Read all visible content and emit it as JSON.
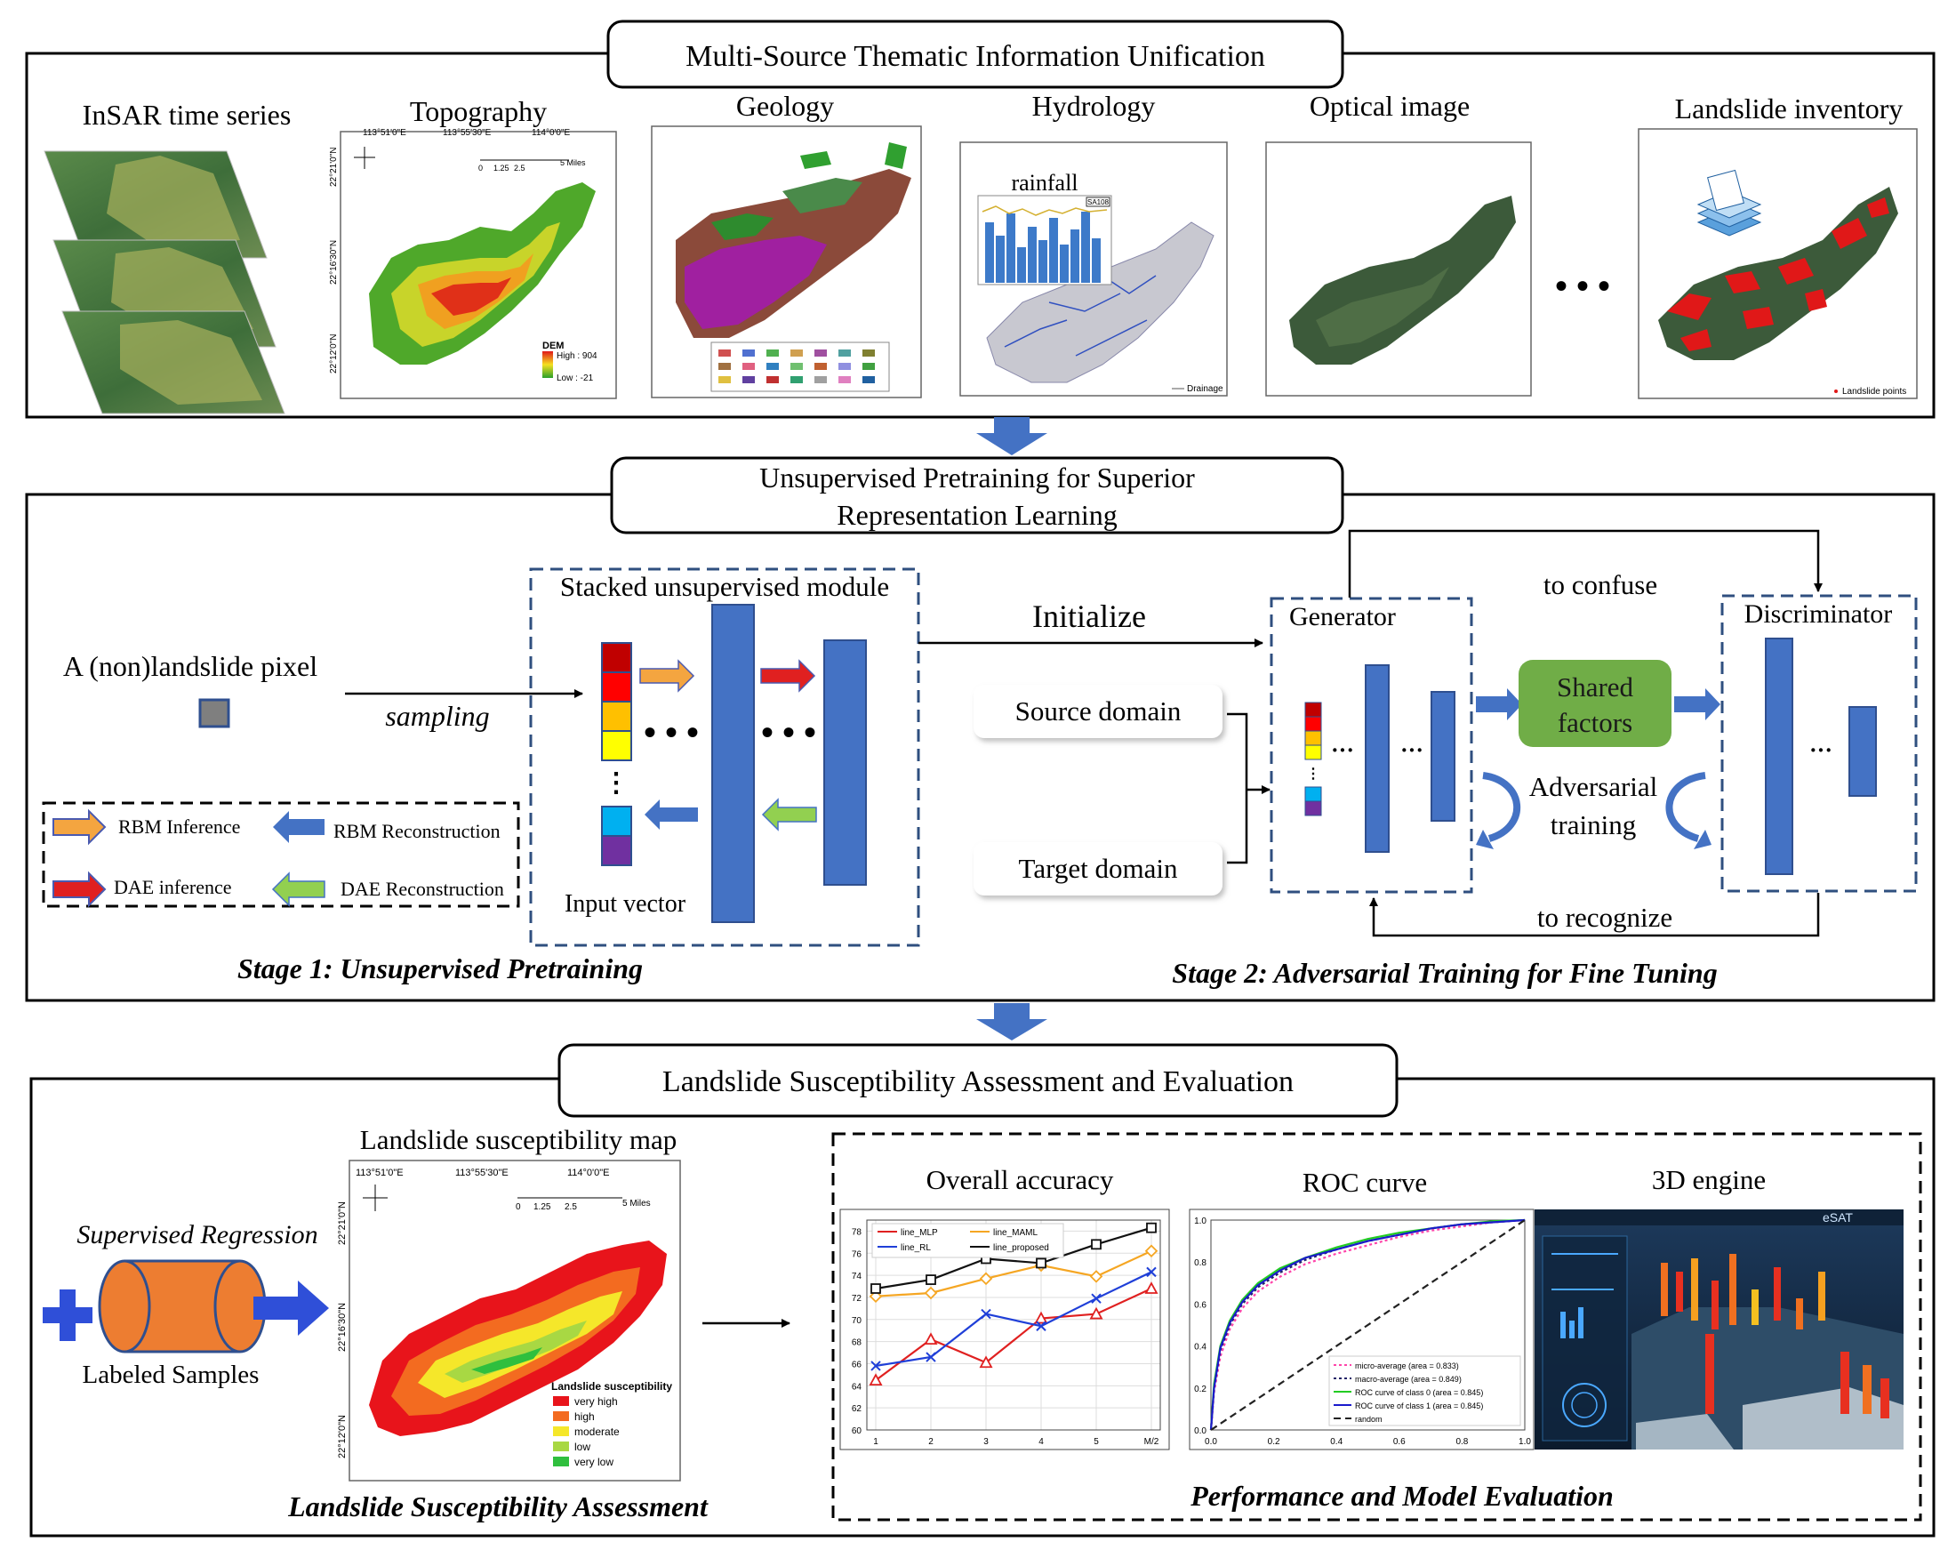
{
  "colors": {
    "accent_blue": "#4472c4",
    "shared_green": "#70ad47",
    "cylinder_orange": "#ed7d31",
    "arrow_orange": "#f4b183",
    "arrow_red": "#e03030",
    "arrow_green": "#92d050",
    "arrow_blue": "#4472c4"
  },
  "section1": {
    "title": "Multi-Source Thematic Information Unification",
    "insar_label": "InSAR time series",
    "topography": {
      "label": "Topography",
      "lon_ticks": [
        "113°51'0\"E",
        "113°55'30\"E",
        "114°0'0\"E"
      ],
      "lat_ticks": [
        "22°21'0\"N",
        "22°16'30\"N",
        "22°12'0\"N"
      ],
      "scale": [
        "0",
        "1.25",
        "2.5",
        "5 Miles"
      ],
      "legend_title": "DEM",
      "legend_high": "High : 904",
      "legend_low": "Low : -21"
    },
    "geology": {
      "label": "Geology"
    },
    "hydrology": {
      "label": "Hydrology",
      "rainfall_label": "rainfall",
      "drainage_label": "Drainage",
      "station": "SA108"
    },
    "optical": {
      "label": "Optical image"
    },
    "ellipsis": "• • •",
    "inventory": {
      "label": "Landslide inventory",
      "points_label": "Landslide points"
    }
  },
  "section2": {
    "title_line1": "Unsupervised Pretraining for Superior",
    "title_line2": "Representation Learning",
    "pixel_label": "A (non)landslide pixel",
    "sampling_label": "sampling",
    "legend": {
      "rbm_inference": "RBM Inference",
      "rbm_reconstruction": "RBM Reconstruction",
      "dae_inference": "DAE inference",
      "dae_reconstruction": "DAE Reconstruction"
    },
    "stacked_module": "Stacked unsupervised module",
    "input_vector": "Input vector",
    "stage1": "Stage 1: Unsupervised Pretraining",
    "initialize": "Initialize",
    "source_domain": "Source domain",
    "target_domain": "Target domain",
    "generator": "Generator",
    "discriminator": "Discriminator",
    "to_confuse": "to confuse",
    "shared_factors_line1": "Shared",
    "shared_factors_line2": "factors",
    "adversarial_line1": "Adversarial",
    "adversarial_line2": "training",
    "to_recognize": "to recognize",
    "stage2": "Stage 2: Adversarial Training for Fine Tuning"
  },
  "section3": {
    "title": "Landslide Susceptibility Assessment and Evaluation",
    "supervised_regression": "Supervised Regression",
    "labeled_samples": "Labeled Samples",
    "map_title": "Landslide susceptibility map",
    "map_lon_ticks": [
      "113°51'0\"E",
      "113°55'30\"E",
      "114°0'0\"E"
    ],
    "map_lat_ticks": [
      "22°21'0\"N",
      "22°16'30\"N",
      "22°12'0\"N"
    ],
    "map_scale": [
      "0",
      "1.25",
      "2.5",
      "5 Miles"
    ],
    "map_legend_title": "Landslide susceptibility",
    "map_legend": [
      {
        "label": "very high",
        "color": "#e8141b"
      },
      {
        "label": "high",
        "color": "#f36b20"
      },
      {
        "label": "moderate",
        "color": "#f5e72a"
      },
      {
        "label": "low",
        "color": "#a8d843"
      },
      {
        "label": "very low",
        "color": "#2fbf3e"
      }
    ],
    "assessment_label": "Landslide Susceptibility Assessment",
    "accuracy_title": "Overall accuracy",
    "roc_title": "ROC curve",
    "engine_title": "3D engine",
    "engine_brand": "eSAT",
    "evaluation_label": "Performance and Model Evaluation"
  },
  "chart_data": [
    {
      "type": "line",
      "title": "Overall accuracy",
      "categories": [
        "1",
        "2",
        "3",
        "4",
        "5",
        "M/2"
      ],
      "ylim": [
        60,
        79
      ],
      "yticks": [
        60,
        62,
        64,
        66,
        68,
        70,
        72,
        74,
        76,
        78
      ],
      "legend_position": "top-left",
      "grid": true,
      "series": [
        {
          "name": "line_MLP",
          "color": "#e02020",
          "marker": "triangle",
          "values": [
            64.5,
            68.2,
            66.1,
            70.1,
            70.5,
            72.8
          ]
        },
        {
          "name": "line_MAML",
          "color": "#f5a623",
          "marker": "diamond",
          "values": [
            72.1,
            72.4,
            73.7,
            74.9,
            73.9,
            76.2
          ]
        },
        {
          "name": "line_RL",
          "color": "#1f3fd8",
          "marker": "x",
          "values": [
            65.8,
            66.6,
            70.5,
            69.4,
            71.9,
            74.3
          ]
        },
        {
          "name": "line_proposed",
          "color": "#111111",
          "marker": "square",
          "values": [
            72.8,
            73.6,
            75.5,
            75.1,
            76.8,
            78.3
          ]
        }
      ]
    },
    {
      "type": "line",
      "title": "ROC curve",
      "xlim": [
        0,
        1
      ],
      "ylim": [
        0,
        1
      ],
      "xticks": [
        "0.0",
        "0.2",
        "0.4",
        "0.6",
        "0.8",
        "1.0"
      ],
      "yticks": [
        "0.0",
        "0.2",
        "0.4",
        "0.6",
        "0.8",
        "1.0"
      ],
      "legend_position": "bottom-right",
      "series": [
        {
          "name": "micro-average (area = 0.833)",
          "color": "#ff44aa",
          "dash": "dot",
          "x": [
            0,
            0.01,
            0.03,
            0.06,
            0.1,
            0.15,
            0.22,
            0.3,
            0.4,
            0.5,
            0.6,
            0.7,
            0.8,
            0.9,
            1.0
          ],
          "y": [
            0,
            0.18,
            0.35,
            0.48,
            0.58,
            0.66,
            0.73,
            0.79,
            0.84,
            0.88,
            0.92,
            0.95,
            0.97,
            0.99,
            1.0
          ]
        },
        {
          "name": "macro-average (area = 0.849)",
          "color": "#222266",
          "dash": "dot",
          "x": [
            0,
            0.01,
            0.03,
            0.06,
            0.1,
            0.15,
            0.22,
            0.3,
            0.4,
            0.5,
            0.6,
            0.7,
            0.8,
            0.9,
            1.0
          ],
          "y": [
            0,
            0.2,
            0.38,
            0.5,
            0.6,
            0.68,
            0.75,
            0.81,
            0.86,
            0.9,
            0.93,
            0.96,
            0.98,
            0.99,
            1.0
          ]
        },
        {
          "name": "ROC curve of class 0 (area = 0.845)",
          "color": "#22cc22",
          "dash": "solid",
          "x": [
            0,
            0.01,
            0.03,
            0.06,
            0.1,
            0.15,
            0.22,
            0.3,
            0.4,
            0.5,
            0.6,
            0.7,
            0.8,
            0.9,
            1.0
          ],
          "y": [
            0,
            0.22,
            0.4,
            0.52,
            0.62,
            0.7,
            0.77,
            0.82,
            0.87,
            0.91,
            0.94,
            0.96,
            0.98,
            0.995,
            1.0
          ]
        },
        {
          "name": "ROC curve of class 1 (area = 0.845)",
          "color": "#1a1acc",
          "dash": "solid",
          "x": [
            0,
            0.01,
            0.03,
            0.06,
            0.1,
            0.15,
            0.22,
            0.3,
            0.4,
            0.5,
            0.6,
            0.7,
            0.8,
            0.9,
            1.0
          ],
          "y": [
            0,
            0.2,
            0.39,
            0.51,
            0.61,
            0.69,
            0.76,
            0.82,
            0.86,
            0.9,
            0.93,
            0.96,
            0.98,
            0.99,
            1.0
          ]
        },
        {
          "name": "random",
          "color": "#222222",
          "dash": "dash",
          "x": [
            0,
            1
          ],
          "y": [
            0,
            1
          ]
        }
      ]
    }
  ]
}
